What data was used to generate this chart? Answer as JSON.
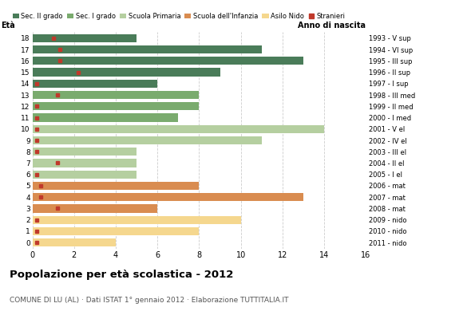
{
  "ages": [
    18,
    17,
    16,
    15,
    14,
    13,
    12,
    11,
    10,
    9,
    8,
    7,
    6,
    5,
    4,
    3,
    2,
    1,
    0
  ],
  "years": [
    "1993 - V sup",
    "1994 - VI sup",
    "1995 - III sup",
    "1996 - II sup",
    "1997 - I sup",
    "1998 - III med",
    "1999 - II med",
    "2000 - I med",
    "2001 - V el",
    "2002 - IV el",
    "2003 - III el",
    "2004 - II el",
    "2005 - I el",
    "2006 - mat",
    "2007 - mat",
    "2008 - mat",
    "2009 - nido",
    "2010 - nido",
    "2011 - nido"
  ],
  "values": [
    5,
    11,
    13,
    9,
    6,
    8,
    8,
    7,
    14,
    11,
    5,
    5,
    5,
    8,
    13,
    6,
    10,
    8,
    4
  ],
  "stranieri": [
    1.0,
    1.3,
    1.3,
    2.2,
    0.2,
    1.2,
    0.2,
    0.2,
    0.2,
    0.2,
    0.2,
    1.2,
    0.2,
    0.4,
    0.4,
    1.2,
    0.2,
    0.2,
    0.2
  ],
  "bar_colors": [
    "#4a7c59",
    "#4a7c59",
    "#4a7c59",
    "#4a7c59",
    "#4a7c59",
    "#7aab6e",
    "#7aab6e",
    "#7aab6e",
    "#b5cfa0",
    "#b5cfa0",
    "#b5cfa0",
    "#b5cfa0",
    "#b5cfa0",
    "#d98c50",
    "#d98c50",
    "#d98c50",
    "#f5d78e",
    "#f5d78e",
    "#f5d78e"
  ],
  "legend_labels": [
    "Sec. II grado",
    "Sec. I grado",
    "Scuola Primaria",
    "Scuola dell'Infanzia",
    "Asilo Nido",
    "Stranieri"
  ],
  "legend_colors": [
    "#4a7c59",
    "#7aab6e",
    "#b5cfa0",
    "#d98c50",
    "#f5d78e",
    "#c0392b"
  ],
  "title": "Popolazione per età scolastica - 2012",
  "subtitle": "COMUNE DI LU (AL) · Dati ISTAT 1° gennaio 2012 · Elaborazione TUTTITALIA.IT",
  "label_eta": "Età",
  "label_anno": "Anno di nascita",
  "xlim": [
    0,
    16
  ],
  "xticks": [
    0,
    2,
    4,
    6,
    8,
    10,
    12,
    14,
    16
  ],
  "stranieri_color": "#c0392b",
  "bg_color": "#ffffff",
  "grid_color": "#cccccc"
}
